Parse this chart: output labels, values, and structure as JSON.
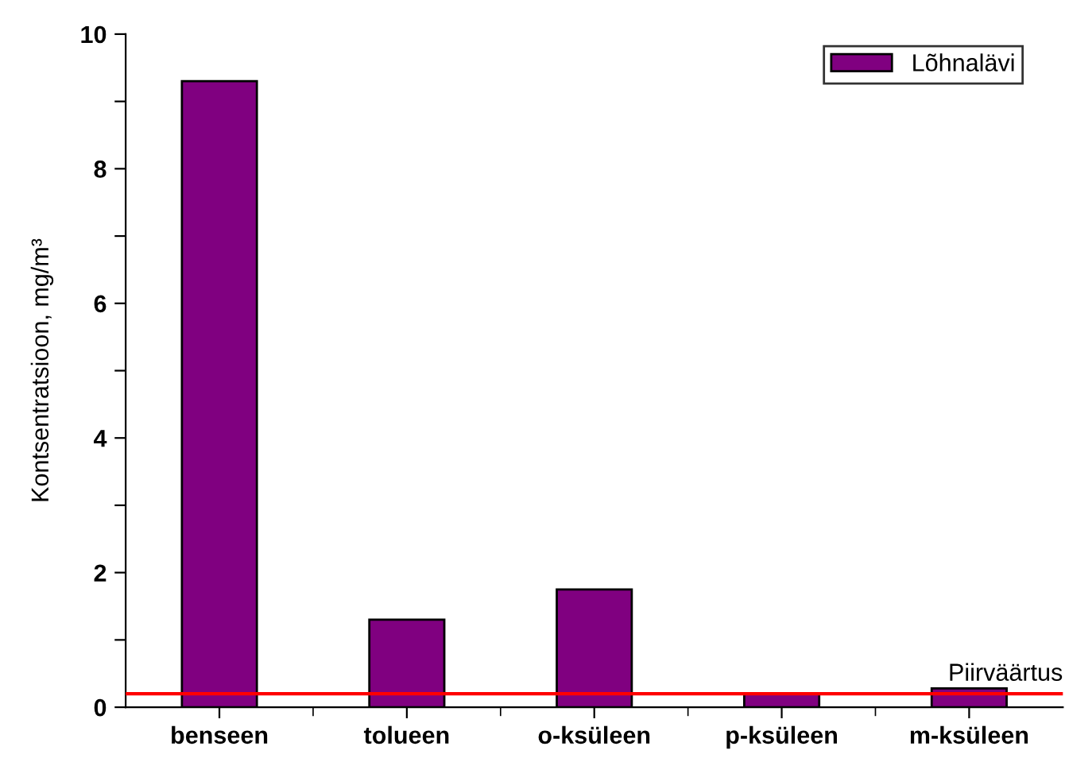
{
  "chart_data": {
    "type": "bar",
    "ylabel": "Kontsentratsioon, mg/m³",
    "categories": [
      "benseen",
      "tolueen",
      "o-ksüleen",
      "p-ksüleen",
      "m-ksüleen"
    ],
    "series": [
      {
        "name": "Lõhnalävi",
        "color": "#800080",
        "values": [
          9.3,
          1.3,
          1.75,
          0.2,
          0.28
        ]
      }
    ],
    "ylim": [
      0,
      10
    ],
    "yticks": [
      0,
      {
        "value": 1,
        "label": null
      },
      2,
      {
        "value": 3,
        "label": null
      },
      4,
      {
        "value": 5,
        "label": null
      },
      6,
      {
        "value": 7,
        "label": null
      },
      8,
      {
        "value": 9,
        "label": null
      },
      10
    ],
    "ref_lines": [
      {
        "axis": "y",
        "value": 0.2,
        "label": "Piirväärtus",
        "color": "#ff0000"
      }
    ],
    "legend": "top right",
    "grid": false
  }
}
